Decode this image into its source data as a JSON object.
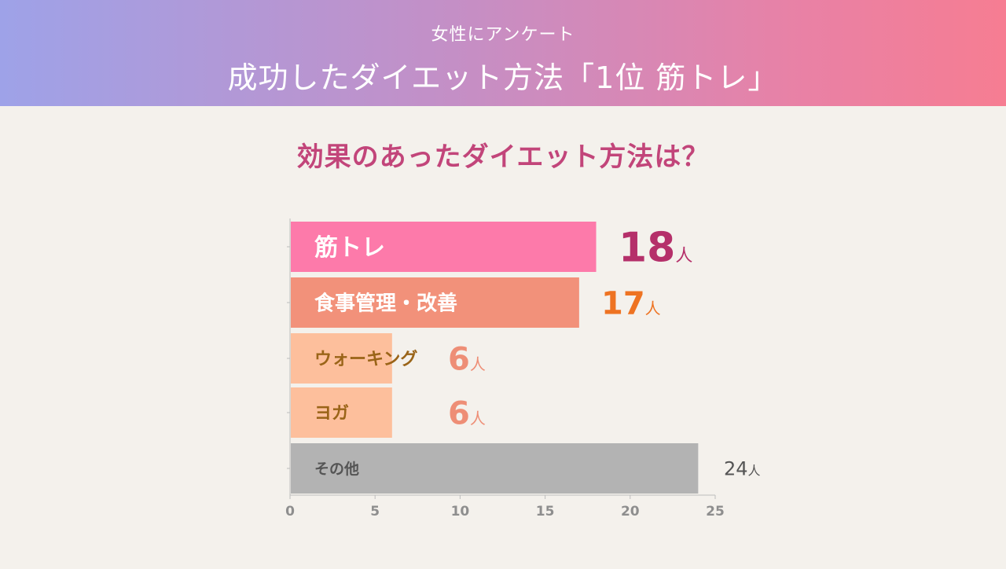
{
  "header": {
    "subtitle": "女性にアンケート",
    "title": "成功したダイエット方法「1位 筋トレ」"
  },
  "question": "効果のあったダイエット方法は？",
  "colors": {
    "header_gradient": [
      "#9ea2e8",
      "#f67d92"
    ],
    "question": "#c2457a",
    "background": "#f4f1ec"
  },
  "chart_data": {
    "type": "bar",
    "orientation": "horizontal",
    "xlim": [
      0,
      25
    ],
    "xticks": [
      "0",
      "5",
      "10",
      "15",
      "20",
      "25"
    ],
    "unit": "人",
    "categories": [
      "筋トレ",
      "食事管理・改善",
      "ウォーキング",
      "ヨガ",
      "その他"
    ],
    "values": [
      18,
      17,
      6,
      6,
      24
    ],
    "bar_colors": [
      "#fd7aaa",
      "#f2917a",
      "#fdbf9c",
      "#fdbf9c",
      "#b3b3b3"
    ],
    "label_colors": [
      "#ffffff",
      "#ffffff",
      "#9a6418",
      "#9a6418",
      "#555555"
    ],
    "value_colors": [
      "#b5306a",
      "#ee7322",
      "#ee8e76",
      "#ee8e76",
      "#555555"
    ]
  }
}
